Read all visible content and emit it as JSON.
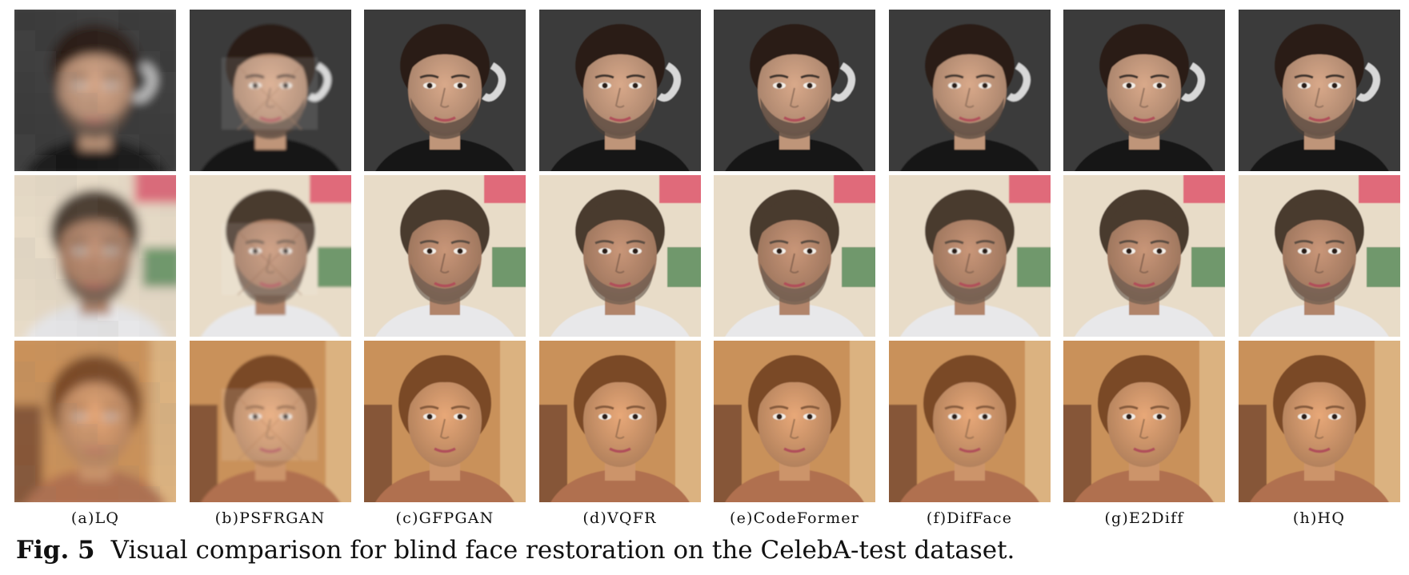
{
  "figure": {
    "caption_id": "Fig. 5",
    "caption_text": "Visual comparison for blind face restoration on the CelebA-test dataset.",
    "columns": [
      {
        "label": "(a)LQ",
        "kind": "lq"
      },
      {
        "label": "(b)PSFRGAN",
        "kind": "artifact"
      },
      {
        "label": "(c)GFPGAN",
        "kind": "restored"
      },
      {
        "label": "(d)VQFR",
        "kind": "restored"
      },
      {
        "label": "(e)CodeFormer",
        "kind": "restored"
      },
      {
        "label": "(f)DifFace",
        "kind": "smooth"
      },
      {
        "label": "(g)E2Diff",
        "kind": "restored"
      },
      {
        "label": "(h)HQ",
        "kind": "hq"
      }
    ],
    "rows": [
      {
        "subject": "man-dark-hair",
        "bg": "#3a3a3a",
        "bg_accent": "#d8d8d8",
        "skin": "#d9a98a",
        "hair": "#2a1d16",
        "shirt": "#151515",
        "gender": "m"
      },
      {
        "subject": "man-short-hair",
        "bg": "#e8dcc8",
        "bg_accent": "#e06a7a",
        "skin": "#c99678",
        "hair": "#4a3a2e",
        "shirt": "#e8e8ea",
        "gender": "m"
      },
      {
        "subject": "woman-hair-back",
        "bg": "#c9915a",
        "bg_accent": "#5a3020",
        "skin": "#e8a878",
        "hair": "#7a4a28",
        "shirt": "#b07050",
        "gender": "f"
      }
    ]
  }
}
